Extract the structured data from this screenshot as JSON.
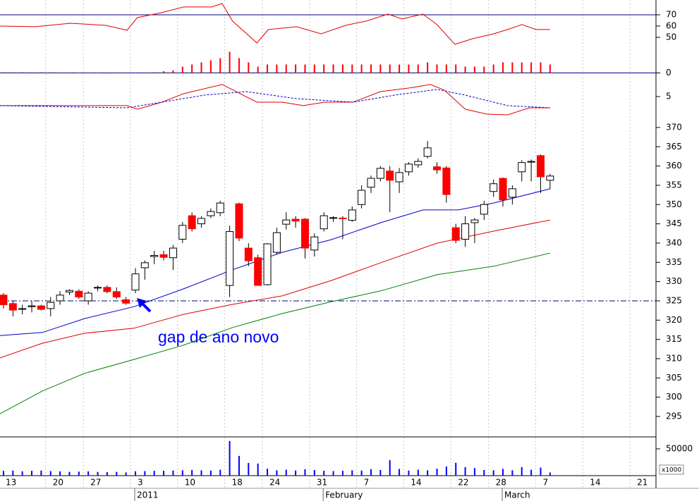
{
  "chart_data": [
    {
      "type": "line",
      "ylim": [
        38.1,
        83.1
      ],
      "yticks": [
        50,
        60,
        70
      ],
      "reference_line": 70,
      "reference_color": "#000080",
      "series": [
        {
          "color": "#e00000",
          "x": [
            -0.37,
            3.37,
            7.11,
            10.85,
            13.1,
            14.2,
            16.8,
            19.1,
            22.1,
            23.2,
            24.3,
            26.9,
            28.1,
            31.1,
            33.7,
            36.3,
            38.5,
            40.8,
            42.3,
            44.5,
            46.0,
            47.9,
            49.8,
            52.0,
            53.5,
            55.0,
            56.5,
            58.0
          ],
          "values": [
            60,
            59.4,
            62.5,
            60.6,
            56.3,
            67.5,
            71.9,
            76.9,
            76.9,
            80,
            64.4,
            45,
            56.9,
            59.4,
            53.1,
            60.6,
            64.4,
            70.6,
            66.3,
            70.6,
            61.3,
            43.8,
            48.8,
            53.1,
            56.9,
            61.3,
            56.9,
            56.9
          ]
        }
      ]
    },
    {
      "type": "bar",
      "ylim": [
        -1.5,
        10.5
      ],
      "yticks": [
        0
      ],
      "color": "#ff0000",
      "zero_color": "#000080",
      "x": [
        0,
        1,
        2,
        3,
        4,
        5,
        6,
        7,
        8,
        9,
        10,
        11,
        12,
        13,
        14,
        15,
        16,
        17,
        18,
        19,
        20,
        21,
        22,
        23,
        24,
        25,
        26,
        27,
        28,
        29,
        30,
        31,
        32,
        33,
        34,
        35,
        36,
        37,
        38,
        39,
        40,
        41,
        42,
        43,
        44,
        45,
        46,
        47,
        48,
        49,
        50,
        51,
        52,
        53,
        54,
        55,
        56,
        57,
        58
      ],
      "values": [
        0.3,
        0.3,
        0.3,
        0.3,
        0.3,
        0.3,
        0.2,
        0.1,
        0.1,
        0.1,
        0.1,
        -0.3,
        -0.2,
        -0.2,
        0.1,
        0.2,
        0.3,
        0.8,
        1.2,
        3,
        4,
        5,
        6,
        7,
        10,
        7,
        5,
        3,
        4,
        4,
        4,
        4,
        4,
        4,
        4,
        4,
        4,
        4,
        4,
        4,
        4,
        4,
        4,
        4,
        4,
        5,
        4,
        4,
        4,
        3,
        3,
        3,
        4,
        5,
        5,
        5,
        5,
        5,
        4
      ]
    },
    {
      "type": "line",
      "ylim": [
        2,
        7.14
      ],
      "yticks": [
        5
      ],
      "series": [
        {
          "color": "#e00000",
          "x": [
            -0.37,
            13.1,
            14.2,
            16.8,
            19.1,
            23.2,
            26.9,
            29.6,
            31.8,
            34.1,
            37.1,
            40.0,
            43.0,
            45.3,
            46.8,
            49.0,
            51.3,
            53.5,
            55.8,
            58.0
          ],
          "values": [
            3.89,
            3.89,
            3.46,
            4.31,
            5.34,
            6.46,
            4.31,
            4.31,
            3.89,
            4.31,
            4.31,
            5.6,
            6.03,
            6.46,
            5.77,
            3.46,
            2.86,
            2.77,
            3.63,
            3.63
          ]
        },
        {
          "color": "#0000cc",
          "dashed": true,
          "x": [
            -0.37,
            13.1,
            16.8,
            21.3,
            25.8,
            31.1,
            37.1,
            41.5,
            46.0,
            49.0,
            53.5,
            58.0
          ],
          "values": [
            3.89,
            3.63,
            4.31,
            5.17,
            5.6,
            4.74,
            4.31,
            5.17,
            5.86,
            5.17,
            3.89,
            3.63
          ]
        }
      ]
    },
    {
      "type": "candlestick",
      "ylim": [
        289.7,
        370.9
      ],
      "yticks": [
        295,
        300,
        305,
        310,
        315,
        320,
        325,
        330,
        335,
        340,
        345,
        350,
        355,
        360,
        365,
        370
      ],
      "grid": true,
      "up_color": "#ffffff",
      "down_color": "#ff0000",
      "edge_color": "#000000",
      "reference_line": 325,
      "reference_color": "#000080",
      "annotation": "gap de ano novo",
      "x": [
        0,
        1,
        2,
        3,
        4,
        5,
        6,
        7,
        8,
        9,
        10,
        11,
        12,
        13,
        14,
        15,
        16,
        17,
        18,
        19,
        20,
        21,
        22,
        23,
        24,
        25,
        26,
        27,
        28,
        29,
        30,
        31,
        32,
        33,
        34,
        35,
        36,
        37,
        38,
        39,
        40,
        41,
        42,
        43,
        44,
        45,
        46,
        47,
        48,
        49,
        50,
        51,
        52,
        53,
        54,
        55,
        56,
        57,
        58
      ],
      "open": [
        326.5,
        324.3,
        322.8,
        323.5,
        323.7,
        323,
        325,
        327.3,
        327.5,
        325,
        328.4,
        328.5,
        327.4,
        325.3,
        327.8,
        333.6,
        336.5,
        337,
        336.2,
        341,
        347.1,
        345,
        347.1,
        347.9,
        329,
        350.2,
        338.7,
        336.2,
        329.2,
        337.6,
        344.9,
        346.2,
        346.2,
        338.2,
        343.7,
        346.6,
        346.5,
        345.9,
        350,
        354.5,
        356.8,
        358.7,
        355.9,
        358.5,
        360.3,
        362.5,
        359.8,
        359.5,
        344,
        341,
        345.3,
        347.5,
        353.4,
        356.8,
        351.9,
        358.5,
        361,
        362.7,
        356.3
      ],
      "high": [
        327,
        325,
        324,
        325,
        324,
        326,
        327.5,
        328,
        328,
        327.5,
        329,
        329,
        328.5,
        326,
        333.5,
        335.5,
        338,
        338,
        339.5,
        345.5,
        348,
        347,
        349,
        351,
        344.5,
        350.5,
        340,
        337,
        340,
        344,
        348,
        347,
        346.5,
        342.5,
        348,
        347,
        347,
        349.5,
        355,
        357.5,
        360,
        360,
        359.5,
        361,
        362,
        366.5,
        361,
        360,
        345,
        347,
        346.5,
        351,
        356.5,
        357,
        355,
        361.5,
        361.7,
        363,
        358
      ],
      "low": [
        323,
        321,
        321.5,
        322,
        322.5,
        321,
        324,
        326.5,
        325.5,
        324,
        327.5,
        327,
        325.5,
        324,
        327,
        330.5,
        334.5,
        335.5,
        333,
        340,
        343,
        344,
        346.5,
        347,
        326,
        340.5,
        334,
        329,
        329,
        337,
        343.5,
        344,
        336,
        336.5,
        343,
        345.5,
        341,
        345.5,
        349,
        353,
        356,
        348,
        353,
        357.5,
        359.5,
        362,
        358,
        350.5,
        340,
        339,
        340,
        346,
        352,
        349.5,
        350,
        356,
        356,
        353,
        354
      ],
      "close": [
        324,
        322.6,
        323,
        323.7,
        322.8,
        324.6,
        326.5,
        327.7,
        326,
        327,
        328.5,
        327.4,
        326,
        324.4,
        332,
        334.9,
        336.8,
        336.3,
        338.7,
        344.6,
        343.7,
        346.4,
        348.2,
        350.4,
        343,
        341.3,
        335.4,
        329,
        339.8,
        342.7,
        346,
        345.7,
        338.7,
        341.6,
        347.1,
        346.6,
        346.3,
        348.6,
        353.7,
        356.8,
        359.4,
        356.3,
        358.3,
        360.5,
        361.2,
        364.7,
        359,
        352.6,
        340.7,
        345,
        346,
        350,
        355.4,
        351.2,
        354.1,
        360.9,
        361.2,
        357.2,
        357.4
      ],
      "series": [
        {
          "color": "#0000cc",
          "x": [
            -0.37,
            4.12,
            8.61,
            13.85,
            19.09,
            24.33,
            29.57,
            34.81,
            40.04,
            44.54,
            48.28,
            52.02,
            58.01
          ],
          "values": [
            316.0,
            316.8,
            320.4,
            323.5,
            328.1,
            333.1,
            337.6,
            340.9,
            345.3,
            348.6,
            348.6,
            350.4,
            354.1
          ]
        },
        {
          "color": "#e00000",
          "x": [
            -0.37,
            4.12,
            8.61,
            13.85,
            19.09,
            24.33,
            29.57,
            34.81,
            40.04,
            46.03,
            52.02,
            58.01
          ],
          "values": [
            310.2,
            314.0,
            316.6,
            317.9,
            321.5,
            324.1,
            326.3,
            330.3,
            334.9,
            340.0,
            343.1,
            346.0
          ]
        },
        {
          "color": "#008000",
          "x": [
            -0.37,
            4.12,
            8.61,
            13.85,
            19.09,
            24.33,
            29.57,
            34.81,
            40.04,
            46.03,
            52.02,
            58.01
          ],
          "values": [
            295.7,
            301.6,
            306.2,
            309.8,
            313.5,
            318.1,
            321.7,
            324.8,
            327.6,
            331.8,
            334.0,
            337.4
          ]
        }
      ]
    },
    {
      "type": "bar",
      "ylim": [
        0,
        66000
      ],
      "yticks": [
        50000
      ],
      "unit_label": "x1000",
      "color": "#0000ff",
      "xlim": [
        -0.37,
        69.24
      ],
      "xticks": [
        {
          "value": 0,
          "label": "13"
        },
        {
          "value": 5,
          "label": "20"
        },
        {
          "value": 9,
          "label": "27"
        },
        {
          "value": 14,
          "label": "3"
        },
        {
          "value": 19,
          "label": "10"
        },
        {
          "value": 24,
          "label": "18"
        },
        {
          "value": 28,
          "label": "24"
        },
        {
          "value": 33,
          "label": "31"
        },
        {
          "value": 38,
          "label": "7"
        },
        {
          "value": 43,
          "label": "14"
        },
        {
          "value": 48,
          "label": "22"
        },
        {
          "value": 52,
          "label": "28"
        },
        {
          "value": 57,
          "label": "7"
        },
        {
          "value": 62,
          "label": "14"
        },
        {
          "value": 67,
          "label": "21"
        }
      ],
      "period_labels": [
        {
          "value": 14,
          "label": "2011"
        },
        {
          "value": 34,
          "label": "February"
        },
        {
          "value": 53,
          "label": "March"
        }
      ],
      "x": [
        0,
        1,
        2,
        3,
        4,
        5,
        6,
        7,
        8,
        9,
        10,
        11,
        12,
        13,
        14,
        15,
        16,
        17,
        18,
        19,
        20,
        21,
        22,
        23,
        24,
        25,
        26,
        27,
        28,
        29,
        30,
        31,
        32,
        33,
        34,
        35,
        36,
        37,
        38,
        39,
        40,
        41,
        42,
        43,
        44,
        45,
        46,
        47,
        48,
        49,
        50,
        51,
        52,
        53,
        54,
        55,
        56,
        57,
        58
      ],
      "values": [
        9000,
        9500,
        8000,
        9000,
        9500,
        8500,
        8000,
        7000,
        7500,
        8000,
        7000,
        6500,
        7000,
        6000,
        8000,
        8500,
        9000,
        9000,
        9500,
        10000,
        10500,
        10000,
        9500,
        11000,
        64500,
        36800,
        23700,
        22500,
        13000,
        10000,
        11000,
        9500,
        12000,
        10500,
        9000,
        8500,
        9000,
        10000,
        9500,
        12000,
        10500,
        29000,
        12500,
        9500,
        11000,
        10000,
        13000,
        17000,
        24000,
        16000,
        14000,
        10500,
        10000,
        12500,
        10000,
        16000,
        11000,
        15000,
        6000
      ]
    }
  ]
}
